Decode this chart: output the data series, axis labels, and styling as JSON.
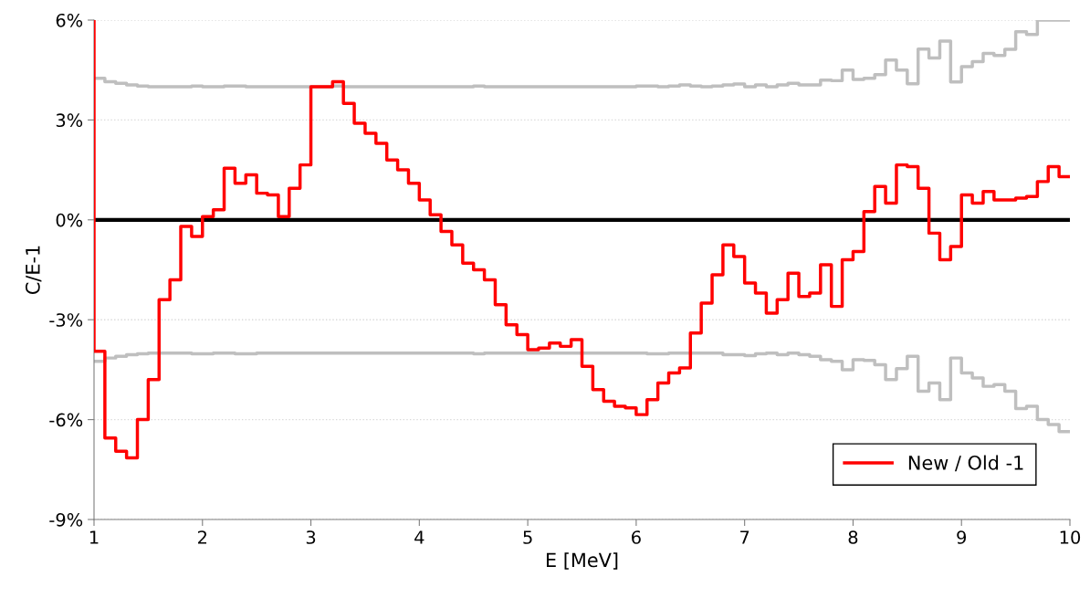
{
  "chart_data": {
    "type": "step",
    "xlabel": "E [MeV]",
    "ylabel": "C/E-1",
    "xlim": [
      1,
      10
    ],
    "xticks": [
      1,
      2,
      3,
      4,
      5,
      6,
      7,
      8,
      9,
      10
    ],
    "ylim": [
      -9,
      6
    ],
    "yticks": [
      {
        "value": -9,
        "label": "-9%"
      },
      {
        "value": -6,
        "label": "-6%"
      },
      {
        "value": -3,
        "label": "-3%"
      },
      {
        "value": 0,
        "label": "0%"
      },
      {
        "value": 3,
        "label": "3%"
      },
      {
        "value": 6,
        "label": "6%"
      }
    ],
    "grid": "y",
    "legend": "bottom right",
    "line_style": "solid",
    "marker": "none",
    "ref_lines": [
      {
        "axis": "y",
        "value": 0,
        "color": "#000000"
      }
    ],
    "x": [
      1.0,
      1.1,
      1.2,
      1.3,
      1.4,
      1.5,
      1.6,
      1.7,
      1.8,
      1.9,
      2.0,
      2.1,
      2.2,
      2.3,
      2.4,
      2.5,
      2.6,
      2.7,
      2.8,
      2.9,
      3.0,
      3.1,
      3.2,
      3.3,
      3.4,
      3.5,
      3.6,
      3.7,
      3.8,
      3.9,
      4.0,
      4.1,
      4.2,
      4.3,
      4.4,
      4.5,
      4.6,
      4.7,
      4.8,
      4.9,
      5.0,
      5.1,
      5.2,
      5.3,
      5.4,
      5.5,
      5.6,
      5.7,
      5.8,
      5.9,
      6.0,
      6.1,
      6.2,
      6.3,
      6.4,
      6.5,
      6.6,
      6.7,
      6.8,
      6.9,
      7.0,
      7.1,
      7.2,
      7.3,
      7.4,
      7.5,
      7.6,
      7.7,
      7.8,
      7.9,
      8.0,
      8.1,
      8.2,
      8.3,
      8.4,
      8.5,
      8.6,
      8.7,
      8.8,
      8.9,
      9.0,
      9.1,
      9.2,
      9.3,
      9.4,
      9.5,
      9.6,
      9.7,
      9.8,
      9.9,
      10.0
    ],
    "series": [
      {
        "color": "#bfbfbf",
        "values": [
          4.25,
          4.15,
          4.1,
          4.05,
          4.02,
          4.0,
          4.0,
          4.0,
          4.0,
          4.02,
          4.0,
          4.0,
          4.02,
          4.02,
          4.0,
          4.0,
          4.0,
          4.0,
          4.0,
          4.0,
          4.0,
          4.0,
          4.02,
          4.0,
          4.0,
          4.0,
          4.0,
          4.0,
          4.0,
          4.0,
          4.0,
          4.0,
          4.0,
          4.0,
          4.0,
          4.02,
          4.0,
          4.0,
          4.0,
          4.0,
          4.0,
          4.0,
          4.0,
          4.0,
          4.0,
          4.0,
          4.0,
          4.0,
          4.0,
          4.0,
          4.02,
          4.02,
          4.0,
          4.02,
          4.05,
          4.02,
          4.0,
          4.02,
          4.05,
          4.08,
          4.0,
          4.05,
          4.0,
          4.05,
          4.1,
          4.05,
          4.05,
          4.2,
          4.18,
          4.5,
          4.22,
          4.25,
          4.36,
          4.8,
          4.5,
          4.09,
          5.13,
          4.86,
          5.37,
          4.14,
          4.6,
          4.75,
          5.0,
          4.94,
          5.12,
          5.65,
          5.57,
          6.0,
          6.0,
          6.0,
          6.0
        ]
      },
      {
        "color": "#bfbfbf",
        "values": [
          -4.25,
          -4.15,
          -4.1,
          -4.05,
          -4.02,
          -4.0,
          -4.0,
          -4.0,
          -4.0,
          -4.02,
          -4.02,
          -4.0,
          -4.0,
          -4.02,
          -4.02,
          -4.0,
          -4.0,
          -4.0,
          -4.0,
          -4.0,
          -4.0,
          -4.0,
          -4.0,
          -4.0,
          -4.0,
          -4.0,
          -4.0,
          -4.0,
          -4.0,
          -4.0,
          -4.0,
          -4.0,
          -4.0,
          -4.0,
          -4.0,
          -4.02,
          -4.0,
          -4.0,
          -4.0,
          -4.0,
          -4.0,
          -4.0,
          -4.0,
          -4.0,
          -4.0,
          -4.0,
          -4.0,
          -4.0,
          -4.0,
          -4.0,
          -4.0,
          -4.02,
          -4.02,
          -4.0,
          -4.0,
          -4.0,
          -4.0,
          -4.0,
          -4.05,
          -4.05,
          -4.08,
          -4.02,
          -4.0,
          -4.05,
          -4.0,
          -4.05,
          -4.1,
          -4.2,
          -4.25,
          -4.5,
          -4.2,
          -4.22,
          -4.35,
          -4.8,
          -4.47,
          -4.1,
          -5.15,
          -4.9,
          -5.4,
          -4.15,
          -4.6,
          -4.75,
          -5.0,
          -4.95,
          -5.15,
          -5.67,
          -5.6,
          -6.0,
          -6.15,
          -6.36,
          -6.36
        ]
      },
      {
        "name": "New / Old -1",
        "color": "#ff0000",
        "x": [
          1.0,
          1.0,
          1.1,
          1.2,
          1.3,
          1.4,
          1.5,
          1.6,
          1.7,
          1.8,
          1.9,
          2.0,
          2.1,
          2.2,
          2.3,
          2.4,
          2.5,
          2.6,
          2.7,
          2.8,
          2.9,
          3.0,
          3.1,
          3.2,
          3.3,
          3.4,
          3.5,
          3.6,
          3.7,
          3.8,
          3.9,
          4.0,
          4.1,
          4.2,
          4.3,
          4.4,
          4.5,
          4.6,
          4.7,
          4.8,
          4.9,
          5.0,
          5.1,
          5.2,
          5.3,
          5.4,
          5.5,
          5.6,
          5.7,
          5.8,
          5.9,
          6.0,
          6.1,
          6.2,
          6.3,
          6.4,
          6.5,
          6.6,
          6.7,
          6.8,
          6.9,
          7.0,
          7.1,
          7.2,
          7.3,
          7.4,
          7.5,
          7.6,
          7.7,
          7.8,
          7.9,
          8.0,
          8.1,
          8.2,
          8.3,
          8.4,
          8.5,
          8.6,
          8.7,
          8.8,
          8.9,
          9.0,
          9.1,
          9.2,
          9.3,
          9.4,
          9.5,
          9.6,
          9.7,
          9.8,
          9.9,
          10.0
        ],
        "values": [
          6.0,
          -3.95,
          -6.55,
          -6.95,
          -7.15,
          -6.0,
          -4.8,
          -2.4,
          -1.8,
          -0.2,
          -0.5,
          0.1,
          0.3,
          1.55,
          1.1,
          1.35,
          0.8,
          0.75,
          0.1,
          0.95,
          1.65,
          4.0,
          4.0,
          4.15,
          3.5,
          2.9,
          2.6,
          2.3,
          1.8,
          1.5,
          1.1,
          0.6,
          0.15,
          -0.35,
          -0.75,
          -1.3,
          -1.5,
          -1.8,
          -2.55,
          -3.15,
          -3.45,
          -3.9,
          -3.85,
          -3.7,
          -3.8,
          -3.6,
          -4.4,
          -5.1,
          -5.45,
          -5.6,
          -5.65,
          -5.85,
          -5.4,
          -4.9,
          -4.6,
          -4.45,
          -3.4,
          -2.5,
          -1.65,
          -0.75,
          -1.1,
          -1.9,
          -2.2,
          -2.8,
          -2.4,
          -1.6,
          -2.3,
          -2.2,
          -1.35,
          -2.6,
          -1.2,
          -0.95,
          0.25,
          1.0,
          0.5,
          1.65,
          1.6,
          0.95,
          -0.4,
          -1.2,
          -0.8,
          0.75,
          0.5,
          0.85,
          0.6,
          0.6,
          0.65,
          0.7,
          1.15,
          1.6,
          1.3,
          1.3
        ]
      }
    ]
  }
}
